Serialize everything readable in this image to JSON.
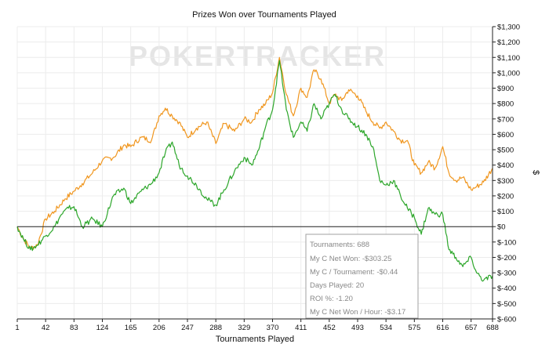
{
  "chart_data": {
    "type": "line",
    "title": "Prizes Won over Tournaments Played",
    "xlabel": "Tournaments Played",
    "ylabel": "$",
    "watermark": "POKERTRACKER",
    "xlim": [
      1,
      688
    ],
    "ylim": [
      -600,
      1300
    ],
    "xticks": [
      1,
      42,
      83,
      124,
      165,
      206,
      247,
      288,
      329,
      370,
      411,
      452,
      493,
      534,
      575,
      616,
      657,
      688
    ],
    "yticks": [
      -600,
      -500,
      -400,
      -300,
      -200,
      -100,
      0,
      100,
      200,
      300,
      400,
      500,
      600,
      700,
      800,
      900,
      1000,
      1100,
      1200,
      1300
    ],
    "ytick_labels": [
      "$-600",
      "$-500",
      "$-400",
      "$-300",
      "$-200",
      "$-100",
      "$0",
      "$100",
      "$200",
      "$300",
      "$400",
      "$500",
      "$600",
      "$700",
      "$800",
      "$900",
      "$1,000",
      "$1,100",
      "$1,200",
      "$1,300"
    ],
    "zero_line": true,
    "series": [
      {
        "color": "#f0961e",
        "x": [
          1,
          10,
          20,
          30,
          42,
          55,
          70,
          83,
          95,
          110,
          124,
          140,
          155,
          165,
          180,
          195,
          206,
          215,
          225,
          235,
          247,
          260,
          275,
          288,
          300,
          315,
          329,
          340,
          350,
          360,
          370,
          380,
          390,
          400,
          411,
          420,
          430,
          440,
          452,
          460,
          470,
          480,
          493,
          505,
          515,
          525,
          534,
          545,
          555,
          565,
          575,
          585,
          595,
          605,
          616,
          625,
          635,
          645,
          657,
          665,
          675,
          688
        ],
        "values": [
          0,
          -80,
          -140,
          -120,
          50,
          100,
          180,
          230,
          280,
          350,
          430,
          450,
          530,
          520,
          580,
          560,
          720,
          770,
          720,
          680,
          580,
          640,
          680,
          540,
          670,
          620,
          700,
          680,
          760,
          800,
          870,
          1100,
          860,
          720,
          900,
          840,
          1020,
          960,
          800,
          860,
          820,
          890,
          850,
          750,
          680,
          640,
          680,
          620,
          560,
          560,
          400,
          350,
          420,
          380,
          520,
          350,
          300,
          320,
          240,
          260,
          290,
          380
        ]
      },
      {
        "color": "#2ca62a",
        "x": [
          1,
          10,
          20,
          30,
          42,
          55,
          65,
          75,
          83,
          95,
          110,
          124,
          140,
          155,
          165,
          180,
          195,
          206,
          215,
          225,
          235,
          247,
          260,
          275,
          288,
          300,
          315,
          329,
          340,
          350,
          360,
          370,
          380,
          390,
          400,
          411,
          420,
          430,
          440,
          452,
          460,
          470,
          480,
          493,
          505,
          515,
          525,
          534,
          545,
          555,
          565,
          575,
          585,
          595,
          605,
          616,
          625,
          635,
          645,
          657,
          665,
          675,
          688
        ],
        "values": [
          0,
          -80,
          -150,
          -120,
          -60,
          0,
          80,
          120,
          130,
          0,
          50,
          0,
          200,
          250,
          150,
          230,
          280,
          350,
          480,
          550,
          400,
          330,
          270,
          180,
          140,
          240,
          360,
          450,
          400,
          500,
          650,
          760,
          1080,
          760,
          580,
          680,
          620,
          800,
          700,
          800,
          860,
          760,
          700,
          650,
          600,
          520,
          300,
          270,
          300,
          200,
          120,
          60,
          -50,
          120,
          80,
          80,
          -150,
          -200,
          -260,
          -200,
          -300,
          -350,
          -320
        ]
      }
    ],
    "tooltip": {
      "lines": [
        "Tournaments: 688",
        "My C Net Won: -$303.25",
        "My C / Tournament: -$0.44",
        "Days Played: 20",
        "ROI %: -1.20",
        "My C Net Won / Hour: -$3.17"
      ]
    }
  }
}
